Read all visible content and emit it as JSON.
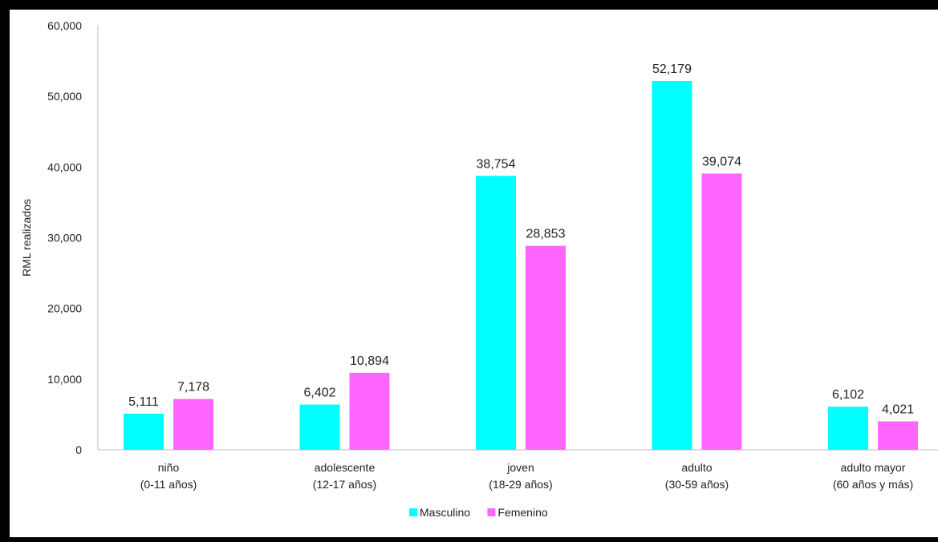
{
  "chart_data": {
    "type": "bar",
    "categories": [
      [
        "niño",
        "(0-11 años)"
      ],
      [
        "adolescente",
        "(12-17 años)"
      ],
      [
        "joven",
        "(18-29 años)"
      ],
      [
        "adulto",
        "(30-59 años)"
      ],
      [
        "adulto mayor",
        "(60 años y más)"
      ]
    ],
    "series": [
      {
        "name": "Masculino",
        "color": "#00FFFF",
        "values": [
          5111,
          6402,
          38754,
          52179,
          6102
        ],
        "labels": [
          "5,111",
          "6,402",
          "38,754",
          "52,179",
          "6,102"
        ]
      },
      {
        "name": "Femenino",
        "color": "#FF66FF",
        "values": [
          7178,
          10894,
          28853,
          39074,
          4021
        ],
        "labels": [
          "7,178",
          "10,894",
          "28,853",
          "39,074",
          "4,021"
        ]
      }
    ],
    "ylabel": "RML realizados",
    "xlabel": "",
    "title": "",
    "ylim": [
      0,
      60000
    ],
    "yticks": [
      0,
      10000,
      20000,
      30000,
      40000,
      50000,
      60000
    ],
    "ytick_labels": [
      "0",
      "10,000",
      "20,000",
      "30,000",
      "40,000",
      "50,000",
      "60,000"
    ],
    "grid": false,
    "legend_position": "bottom"
  }
}
